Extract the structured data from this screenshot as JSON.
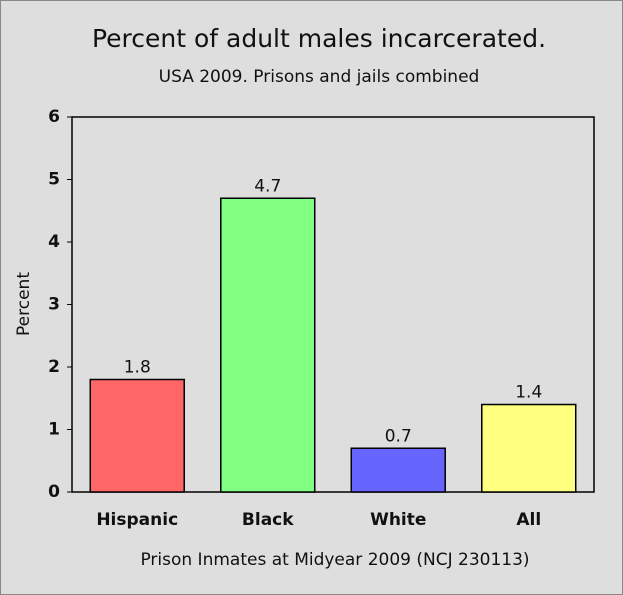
{
  "chart_data": {
    "type": "bar",
    "title": "Percent of adult males incarcerated.",
    "subtitle": "USA 2009. Prisons and jails combined",
    "categories": [
      "Hispanic",
      "Black",
      "White",
      "All"
    ],
    "values": [
      1.8,
      4.7,
      0.7,
      1.4
    ],
    "colors": [
      "#ff6666",
      "#80ff80",
      "#6666ff",
      "#ffff80"
    ],
    "ylabel": "Percent",
    "xlabel": "Prison Inmates at Midyear 2009 (NCJ 230113)",
    "ylim": [
      0,
      6
    ],
    "yticks": [
      0,
      1,
      2,
      3,
      4,
      5,
      6
    ],
    "grid": false
  }
}
